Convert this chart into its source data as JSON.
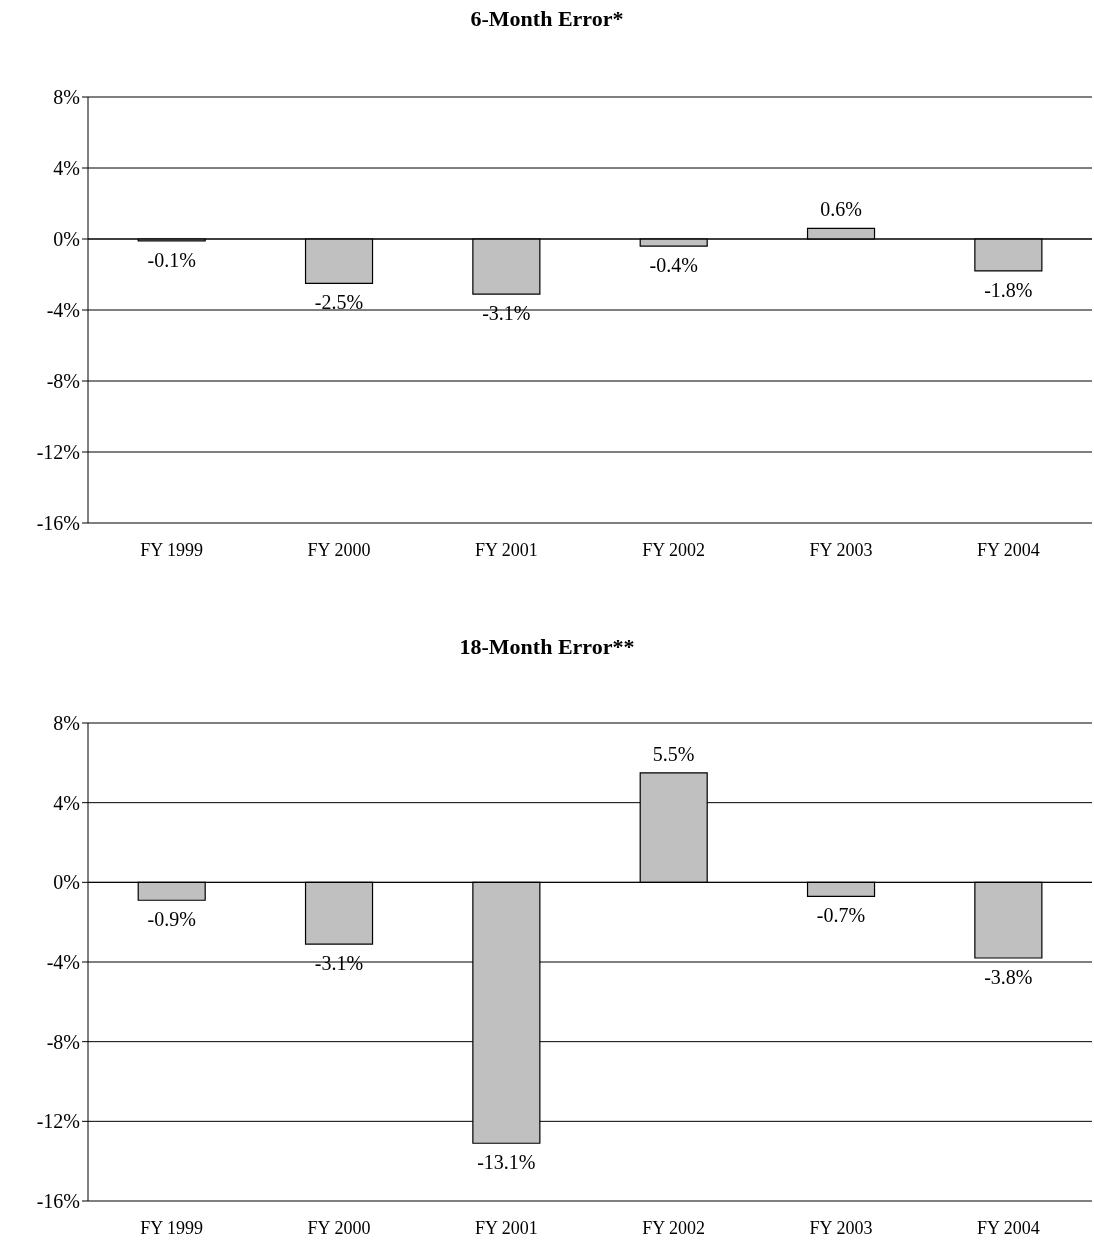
{
  "chart_data": [
    {
      "type": "bar",
      "title": "6-Month Error*",
      "categories": [
        "FY 1999",
        "FY 2000",
        "FY 2001",
        "FY 2002",
        "FY 2003",
        "FY 2004"
      ],
      "values": [
        -0.1,
        -2.5,
        -3.1,
        -0.4,
        0.6,
        -1.8
      ],
      "value_labels": [
        "-0.1%",
        "-2.5%",
        "-3.1%",
        "-0.4%",
        "0.6%",
        "-1.8%"
      ],
      "color": "#c0c0c0",
      "ylim": [
        -16,
        8
      ],
      "yticks": [
        {
          "value": -16,
          "label": "-16%"
        },
        {
          "value": -12,
          "label": "-12%"
        },
        {
          "value": -8,
          "label": "-8%"
        },
        {
          "value": -4,
          "label": "-4%"
        },
        {
          "value": 0,
          "label": "0%"
        },
        {
          "value": 4,
          "label": "4%"
        },
        {
          "value": 8,
          "label": "8%"
        }
      ],
      "grid": "y"
    },
    {
      "type": "bar",
      "title": "18-Month Error**",
      "categories": [
        "FY 1999",
        "FY 2000",
        "FY 2001",
        "FY 2002",
        "FY 2003",
        "FY 2004"
      ],
      "values": [
        -0.9,
        -3.1,
        -13.1,
        5.5,
        -0.7,
        -3.8
      ],
      "value_labels": [
        "-0.9%",
        "-3.1%",
        "-13.1%",
        "5.5%",
        "-0.7%",
        "-3.8%"
      ],
      "color": "#c0c0c0",
      "ylim": [
        -16,
        8
      ],
      "yticks": [
        {
          "value": -16,
          "label": "-16%"
        },
        {
          "value": -12,
          "label": "-12%"
        },
        {
          "value": -8,
          "label": "-8%"
        },
        {
          "value": -4,
          "label": "-4%"
        },
        {
          "value": 0,
          "label": "0%"
        },
        {
          "value": 4,
          "label": "4%"
        },
        {
          "value": 8,
          "label": "8%"
        }
      ],
      "grid": "y"
    }
  ]
}
